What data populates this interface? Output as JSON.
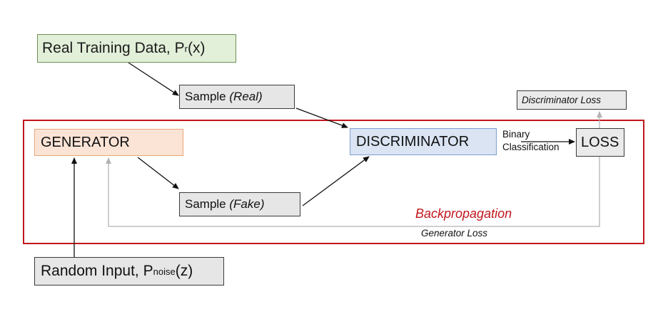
{
  "real_data": {
    "text": "Real Training Data, P",
    "sub": "r",
    "suffix": "(x)"
  },
  "sample_real": {
    "text": "Sample ",
    "italic": "(Real)"
  },
  "sample_fake": {
    "text": "Sample ",
    "italic": "(Fake)"
  },
  "generator": "GENERATOR",
  "discriminator": "DISCRIMINATOR",
  "binary_classification": [
    "Binary",
    "Classification"
  ],
  "loss": "LOSS",
  "discriminator_loss": "Discriminator Loss",
  "backpropagation": "Backpropagation",
  "generator_loss": "Generator Loss",
  "random_input": {
    "text": "Random Input, P",
    "sub": "noise",
    "suffix": "(z)"
  },
  "colors": {
    "frame_red": "#c0161c",
    "real_fill": "#e2efd9",
    "generator_fill": "#fbe4d6",
    "discriminator_fill": "#dae4f3",
    "sample_fill": "#e6e6e6",
    "feedback_line": "#b3b3b3"
  }
}
